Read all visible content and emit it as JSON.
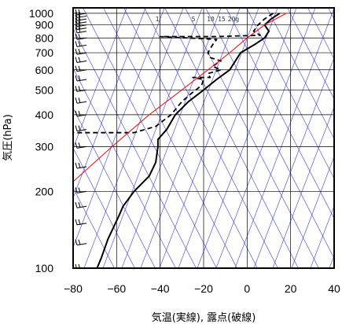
{
  "chart_data": {
    "type": "line",
    "xlabel": "気温(実線), 露点(破線)",
    "ylabel": "気圧(hPa)",
    "x_scale": "linear",
    "y_scale": "log (pressure, inverted)",
    "xlim": [
      -80,
      40
    ],
    "ylim": [
      1050,
      100
    ],
    "x_ticks": [
      -80,
      -60,
      -40,
      -20,
      0,
      20,
      40
    ],
    "x_tick_labels": [
      "−80",
      "−60",
      "−40",
      "−20",
      "0",
      "20",
      "40"
    ],
    "y_ticks": [
      1000,
      900,
      800,
      700,
      600,
      500,
      400,
      300,
      200,
      100
    ],
    "y_tick_labels": [
      "1000",
      "900",
      "800",
      "700",
      "600",
      "500",
      "400",
      "300",
      "200",
      "100"
    ],
    "grid": true,
    "mixing_ratio_labels": [
      "1",
      "5",
      "10",
      "15",
      "20g"
    ],
    "colors": {
      "temperature": "#000000",
      "dewpoint": "#000000",
      "parcel_curve": "#ff0000",
      "reference_lines": "#3a3aff",
      "grid": "#000000"
    },
    "series": [
      {
        "points": [
          [
            15,
            1000
          ],
          [
            11,
            950
          ],
          [
            8,
            900
          ],
          [
            10,
            850
          ],
          [
            8,
            800
          ],
          [
            3,
            750
          ],
          [
            -3,
            700
          ],
          [
            -8,
            600
          ],
          [
            -14,
            550
          ],
          [
            -20,
            500
          ],
          [
            -27,
            450
          ],
          [
            -33,
            400
          ],
          [
            -37,
            350
          ],
          [
            -41,
            320
          ],
          [
            -41,
            300
          ],
          [
            -42,
            260
          ],
          [
            -45,
            230
          ],
          [
            -52,
            200
          ],
          [
            -57,
            175
          ],
          [
            -59,
            160
          ],
          [
            -64,
            130
          ],
          [
            -67,
            110
          ],
          [
            -69,
            100
          ]
        ]
      },
      {
        "points": [
          [
            12,
            1000
          ],
          [
            8,
            950
          ],
          [
            5,
            900
          ],
          [
            3,
            850
          ],
          [
            6,
            820
          ],
          [
            -14,
            810
          ],
          [
            -40,
            810
          ],
          [
            -14,
            790
          ],
          [
            -16,
            750
          ],
          [
            -18,
            700
          ],
          [
            -17,
            670
          ],
          [
            -12,
            650
          ],
          [
            -16,
            620
          ],
          [
            -12,
            600
          ],
          [
            -18,
            580
          ],
          [
            -17,
            560
          ],
          [
            -25,
            560
          ],
          [
            -20,
            550
          ],
          [
            -21,
            520
          ],
          [
            -25,
            490
          ],
          [
            -30,
            450
          ],
          [
            -35,
            400
          ],
          [
            -42,
            360
          ],
          [
            -52,
            340
          ],
          [
            -80,
            340
          ]
        ]
      },
      {
        "points": [
          [
            18,
            1000
          ],
          [
            8,
            900
          ],
          [
            0,
            800
          ],
          [
            -8,
            700
          ],
          [
            -18,
            600
          ],
          [
            -30,
            500
          ],
          [
            -45,
            400
          ],
          [
            -62,
            300
          ],
          [
            -85,
            200
          ]
        ]
      }
    ]
  }
}
